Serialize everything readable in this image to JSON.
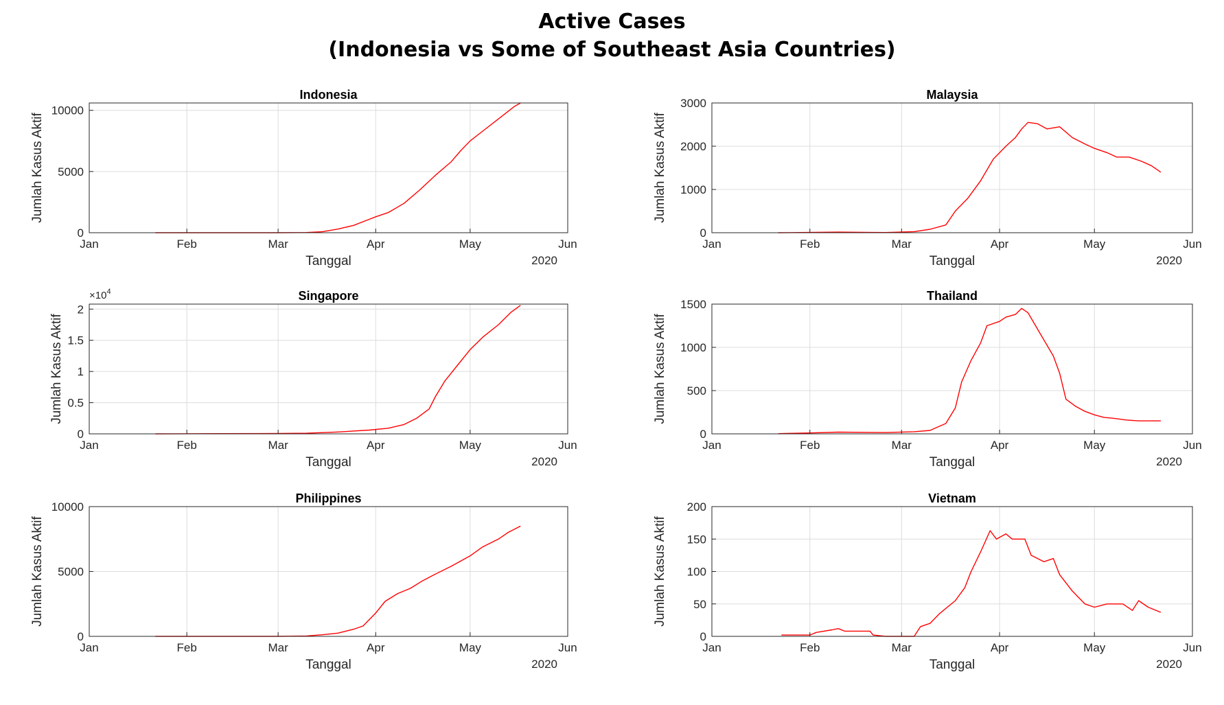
{
  "figure": {
    "title_line1": "Active Cases",
    "title_line2": "(Indonesia vs Some of Southeast Asia Countries)"
  },
  "colors": {
    "line": "#ff0000",
    "grid": "#dcdcdc",
    "axis": "#262626"
  },
  "chart_data": [
    {
      "type": "line",
      "title": "Indonesia",
      "xlabel": "Tanggal",
      "ylabel": "Jumlah Kasus Aktif",
      "year_label": "2020",
      "xticks": [
        "Jan",
        "Feb",
        "Mar",
        "Apr",
        "May",
        "Jun"
      ],
      "xlim": [
        "2020-01-01",
        "2020-06-01"
      ],
      "ylim": [
        0,
        10600
      ],
      "yticks": [
        0,
        5000,
        10000
      ],
      "ytick_labels": [
        "0",
        "5000",
        "10000"
      ],
      "multiplier": "",
      "grid": true,
      "series": [
        {
          "color": "#ff0000",
          "points": [
            [
              "2020-01-22",
              0
            ],
            [
              "2020-03-01",
              0
            ],
            [
              "2020-03-10",
              15
            ],
            [
              "2020-03-15",
              80
            ],
            [
              "2020-03-20",
              300
            ],
            [
              "2020-03-25",
              600
            ],
            [
              "2020-03-30",
              1100
            ],
            [
              "2020-04-01",
              1300
            ],
            [
              "2020-04-05",
              1650
            ],
            [
              "2020-04-10",
              2400
            ],
            [
              "2020-04-15",
              3500
            ],
            [
              "2020-04-20",
              4700
            ],
            [
              "2020-04-25",
              5800
            ],
            [
              "2020-04-28",
              6700
            ],
            [
              "2020-05-01",
              7500
            ],
            [
              "2020-05-05",
              8300
            ],
            [
              "2020-05-10",
              9300
            ],
            [
              "2020-05-15",
              10300
            ],
            [
              "2020-05-17",
              10600
            ]
          ]
        }
      ]
    },
    {
      "type": "line",
      "title": "Malaysia",
      "xlabel": "Tanggal",
      "ylabel": "Jumlah Kasus Aktif",
      "year_label": "2020",
      "xticks": [
        "Jan",
        "Feb",
        "Mar",
        "Apr",
        "May",
        "Jun"
      ],
      "xlim": [
        "2020-01-01",
        "2020-06-01"
      ],
      "ylim": [
        0,
        3000
      ],
      "yticks": [
        0,
        1000,
        2000,
        3000
      ],
      "ytick_labels": [
        "0",
        "1000",
        "2000",
        "3000"
      ],
      "multiplier": "",
      "grid": true,
      "series": [
        {
          "color": "#ff0000",
          "points": [
            [
              "2020-01-22",
              0
            ],
            [
              "2020-02-10",
              15
            ],
            [
              "2020-02-25",
              5
            ],
            [
              "2020-03-05",
              25
            ],
            [
              "2020-03-10",
              80
            ],
            [
              "2020-03-15",
              180
            ],
            [
              "2020-03-18",
              500
            ],
            [
              "2020-03-22",
              800
            ],
            [
              "2020-03-26",
              1200
            ],
            [
              "2020-03-30",
              1700
            ],
            [
              "2020-04-03",
              2000
            ],
            [
              "2020-04-06",
              2200
            ],
            [
              "2020-04-08",
              2400
            ],
            [
              "2020-04-10",
              2550
            ],
            [
              "2020-04-13",
              2520
            ],
            [
              "2020-04-16",
              2400
            ],
            [
              "2020-04-20",
              2450
            ],
            [
              "2020-04-24",
              2200
            ],
            [
              "2020-04-28",
              2050
            ],
            [
              "2020-05-01",
              1950
            ],
            [
              "2020-05-05",
              1850
            ],
            [
              "2020-05-08",
              1750
            ],
            [
              "2020-05-12",
              1750
            ],
            [
              "2020-05-16",
              1650
            ],
            [
              "2020-05-19",
              1550
            ],
            [
              "2020-05-22",
              1400
            ]
          ]
        }
      ]
    },
    {
      "type": "line",
      "title": "Singapore",
      "xlabel": "Tanggal",
      "ylabel": "Jumlah Kasus Aktif",
      "year_label": "2020",
      "xticks": [
        "Jan",
        "Feb",
        "Mar",
        "Apr",
        "May",
        "Jun"
      ],
      "xlim": [
        "2020-01-01",
        "2020-06-01"
      ],
      "ylim": [
        0,
        20800
      ],
      "yticks": [
        0,
        5000,
        10000,
        15000,
        20000
      ],
      "ytick_labels": [
        "0",
        "0.5",
        "1",
        "1.5",
        "2"
      ],
      "multiplier": "4",
      "grid": true,
      "series": [
        {
          "color": "#ff0000",
          "points": [
            [
              "2020-01-22",
              0
            ],
            [
              "2020-02-10",
              30
            ],
            [
              "2020-03-01",
              60
            ],
            [
              "2020-03-10",
              100
            ],
            [
              "2020-03-20",
              300
            ],
            [
              "2020-03-30",
              600
            ],
            [
              "2020-04-05",
              900
            ],
            [
              "2020-04-10",
              1500
            ],
            [
              "2020-04-14",
              2500
            ],
            [
              "2020-04-18",
              4000
            ],
            [
              "2020-04-20",
              6000
            ],
            [
              "2020-04-23",
              8500
            ],
            [
              "2020-04-27",
              11000
            ],
            [
              "2020-05-01",
              13500
            ],
            [
              "2020-05-05",
              15500
            ],
            [
              "2020-05-10",
              17500
            ],
            [
              "2020-05-14",
              19500
            ],
            [
              "2020-05-17",
              20600
            ]
          ]
        }
      ]
    },
    {
      "type": "line",
      "title": "Thailand",
      "xlabel": "Tanggal",
      "ylabel": "Jumlah Kasus Aktif",
      "year_label": "2020",
      "xticks": [
        "Jan",
        "Feb",
        "Mar",
        "Apr",
        "May",
        "Jun"
      ],
      "xlim": [
        "2020-01-01",
        "2020-06-01"
      ],
      "ylim": [
        0,
        1500
      ],
      "yticks": [
        0,
        500,
        1000,
        1500
      ],
      "ytick_labels": [
        "0",
        "500",
        "1000",
        "1500"
      ],
      "multiplier": "",
      "grid": true,
      "series": [
        {
          "color": "#ff0000",
          "points": [
            [
              "2020-01-22",
              2
            ],
            [
              "2020-02-01",
              10
            ],
            [
              "2020-02-10",
              20
            ],
            [
              "2020-02-25",
              15
            ],
            [
              "2020-03-05",
              25
            ],
            [
              "2020-03-10",
              40
            ],
            [
              "2020-03-15",
              120
            ],
            [
              "2020-03-18",
              300
            ],
            [
              "2020-03-20",
              600
            ],
            [
              "2020-03-23",
              850
            ],
            [
              "2020-03-26",
              1050
            ],
            [
              "2020-03-28",
              1250
            ],
            [
              "2020-04-01",
              1300
            ],
            [
              "2020-04-03",
              1350
            ],
            [
              "2020-04-06",
              1380
            ],
            [
              "2020-04-08",
              1450
            ],
            [
              "2020-04-10",
              1400
            ],
            [
              "2020-04-14",
              1150
            ],
            [
              "2020-04-18",
              900
            ],
            [
              "2020-04-20",
              700
            ],
            [
              "2020-04-22",
              400
            ],
            [
              "2020-04-25",
              320
            ],
            [
              "2020-04-28",
              260
            ],
            [
              "2020-05-01",
              220
            ],
            [
              "2020-05-04",
              190
            ],
            [
              "2020-05-07",
              180
            ],
            [
              "2020-05-11",
              160
            ],
            [
              "2020-05-15",
              150
            ],
            [
              "2020-05-22",
              150
            ]
          ]
        }
      ]
    },
    {
      "type": "line",
      "title": "Philippines",
      "xlabel": "Tanggal",
      "ylabel": "Jumlah Kasus Aktif",
      "year_label": "2020",
      "xticks": [
        "Jan",
        "Feb",
        "Mar",
        "Apr",
        "May",
        "Jun"
      ],
      "xlim": [
        "2020-01-01",
        "2020-06-01"
      ],
      "ylim": [
        0,
        10000
      ],
      "yticks": [
        0,
        5000,
        10000
      ],
      "ytick_labels": [
        "0",
        "5000",
        "10000"
      ],
      "multiplier": "",
      "grid": true,
      "series": [
        {
          "color": "#ff0000",
          "points": [
            [
              "2020-01-22",
              0
            ],
            [
              "2020-03-01",
              0
            ],
            [
              "2020-03-10",
              30
            ],
            [
              "2020-03-15",
              120
            ],
            [
              "2020-03-20",
              250
            ],
            [
              "2020-03-25",
              550
            ],
            [
              "2020-03-28",
              800
            ],
            [
              "2020-04-01",
              1800
            ],
            [
              "2020-04-04",
              2700
            ],
            [
              "2020-04-08",
              3300
            ],
            [
              "2020-04-12",
              3700
            ],
            [
              "2020-04-16",
              4300
            ],
            [
              "2020-04-20",
              4800
            ],
            [
              "2020-04-25",
              5400
            ],
            [
              "2020-05-01",
              6200
            ],
            [
              "2020-05-05",
              6900
            ],
            [
              "2020-05-10",
              7500
            ],
            [
              "2020-05-13",
              8000
            ],
            [
              "2020-05-17",
              8500
            ]
          ]
        }
      ]
    },
    {
      "type": "line",
      "title": "Vietnam",
      "xlabel": "Tanggal",
      "ylabel": "Jumlah Kasus Aktif",
      "year_label": "2020",
      "xticks": [
        "Jan",
        "Feb",
        "Mar",
        "Apr",
        "May",
        "Jun"
      ],
      "xlim": [
        "2020-01-01",
        "2020-06-01"
      ],
      "ylim": [
        0,
        200
      ],
      "yticks": [
        0,
        50,
        100,
        150,
        200
      ],
      "ytick_labels": [
        "0",
        "50",
        "100",
        "150",
        "200"
      ],
      "multiplier": "",
      "grid": true,
      "series": [
        {
          "color": "#ff0000",
          "points": [
            [
              "2020-01-23",
              2
            ],
            [
              "2020-02-01",
              2
            ],
            [
              "2020-02-03",
              6
            ],
            [
              "2020-02-08",
              10
            ],
            [
              "2020-02-10",
              12
            ],
            [
              "2020-02-12",
              8
            ],
            [
              "2020-02-20",
              8
            ],
            [
              "2020-02-21",
              2
            ],
            [
              "2020-02-25",
              0
            ],
            [
              "2020-03-05",
              0
            ],
            [
              "2020-03-07",
              15
            ],
            [
              "2020-03-10",
              20
            ],
            [
              "2020-03-13",
              35
            ],
            [
              "2020-03-18",
              55
            ],
            [
              "2020-03-21",
              75
            ],
            [
              "2020-03-23",
              100
            ],
            [
              "2020-03-26",
              130
            ],
            [
              "2020-03-29",
              163
            ],
            [
              "2020-03-31",
              150
            ],
            [
              "2020-04-03",
              158
            ],
            [
              "2020-04-05",
              150
            ],
            [
              "2020-04-09",
              150
            ],
            [
              "2020-04-11",
              125
            ],
            [
              "2020-04-15",
              115
            ],
            [
              "2020-04-18",
              120
            ],
            [
              "2020-04-20",
              95
            ],
            [
              "2020-04-24",
              70
            ],
            [
              "2020-04-28",
              50
            ],
            [
              "2020-05-01",
              45
            ],
            [
              "2020-05-05",
              50
            ],
            [
              "2020-05-10",
              50
            ],
            [
              "2020-05-13",
              40
            ],
            [
              "2020-05-15",
              55
            ],
            [
              "2020-05-18",
              45
            ],
            [
              "2020-05-22",
              37
            ]
          ]
        }
      ]
    }
  ]
}
